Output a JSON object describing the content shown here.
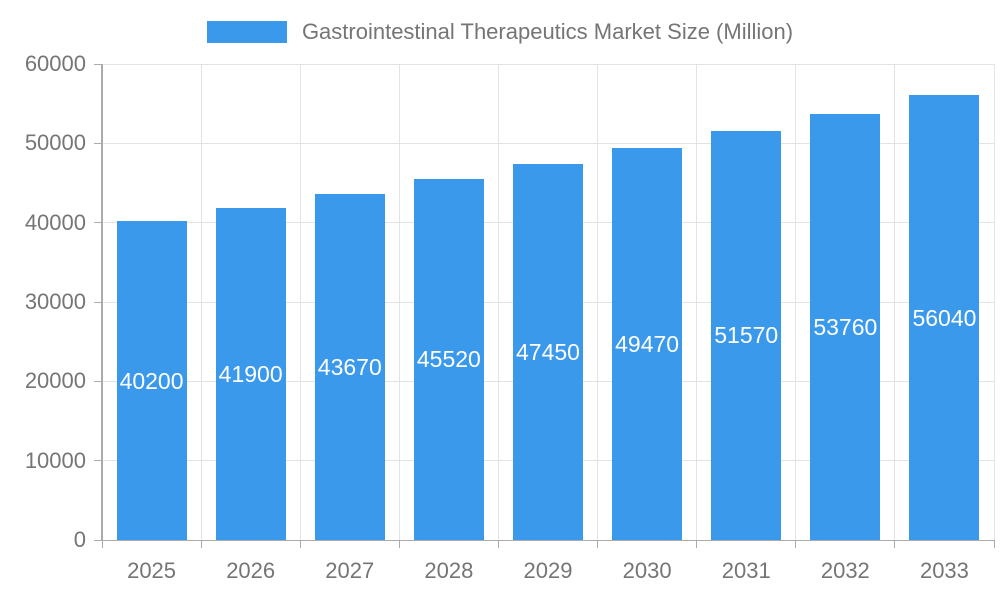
{
  "chart_data": {
    "type": "bar",
    "title": "Gastrointestinal Therapeutics Market Size (Million)",
    "categories": [
      "2025",
      "2026",
      "2027",
      "2028",
      "2029",
      "2030",
      "2031",
      "2032",
      "2033"
    ],
    "values": [
      40200,
      41900,
      43670,
      45520,
      47450,
      49470,
      51570,
      53760,
      56040
    ],
    "xlabel": "",
    "ylabel": "",
    "ylim": [
      0,
      60000
    ],
    "ytick_step": 10000,
    "yticks": [
      "0",
      "10000",
      "20000",
      "30000",
      "40000",
      "50000",
      "60000"
    ],
    "grid": true,
    "legend_position": "top-center",
    "colors": {
      "bar": "#3B99EC",
      "bar_value_text": "#ffffff",
      "axis_text": "#757575",
      "grid_line": "#e3e3e3",
      "axis_line": "#ababab"
    }
  }
}
